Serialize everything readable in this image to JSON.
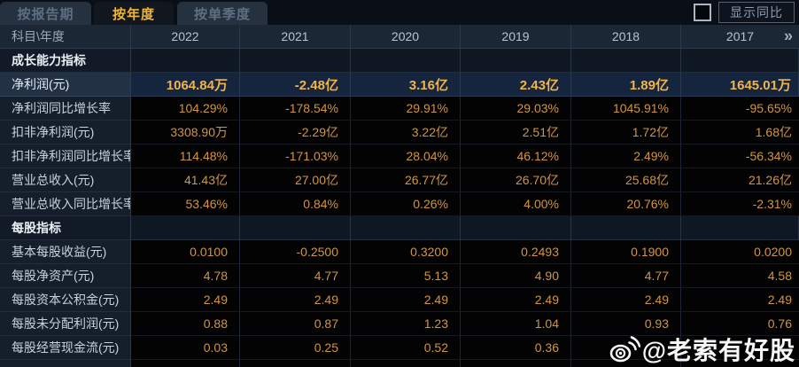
{
  "tabs": [
    {
      "label": "按报告期",
      "active": false
    },
    {
      "label": "按年度",
      "active": true
    },
    {
      "label": "按单季度",
      "active": false
    }
  ],
  "controls": {
    "show_yoy_label": "显示同比",
    "checkbox_checked": false
  },
  "table": {
    "corner_label": "科目\\年度",
    "years": [
      "2022",
      "2021",
      "2020",
      "2019",
      "2018",
      "2017"
    ],
    "more_icon": "»",
    "rows": [
      {
        "type": "section",
        "label": "成长能力指标"
      },
      {
        "type": "data",
        "highlight": true,
        "label": "净利润(元)",
        "values": [
          "1064.84万",
          "-2.48亿",
          "3.16亿",
          "2.43亿",
          "1.89亿",
          "1645.01万"
        ]
      },
      {
        "type": "data",
        "highlight": false,
        "label": "净利润同比增长率",
        "values": [
          "104.29%",
          "-178.54%",
          "29.91%",
          "29.03%",
          "1045.91%",
          "-95.65%"
        ]
      },
      {
        "type": "data",
        "highlight": false,
        "label": "扣非净利润(元)",
        "values": [
          "3308.90万",
          "-2.29亿",
          "3.22亿",
          "2.51亿",
          "1.72亿",
          "1.68亿"
        ]
      },
      {
        "type": "data",
        "highlight": false,
        "label": "扣非净利润同比增长率",
        "values": [
          "114.48%",
          "-171.03%",
          "28.04%",
          "46.12%",
          "2.49%",
          "-56.34%"
        ]
      },
      {
        "type": "data",
        "highlight": false,
        "label": "营业总收入(元)",
        "values": [
          "41.43亿",
          "27.00亿",
          "26.77亿",
          "26.70亿",
          "25.68亿",
          "21.26亿"
        ]
      },
      {
        "type": "data",
        "highlight": false,
        "label": "营业总收入同比增长率",
        "values": [
          "53.46%",
          "0.84%",
          "0.26%",
          "4.00%",
          "20.76%",
          "-2.31%"
        ]
      },
      {
        "type": "section",
        "label": "每股指标"
      },
      {
        "type": "data",
        "highlight": false,
        "label": "基本每股收益(元)",
        "values": [
          "0.0100",
          "-0.2500",
          "0.3200",
          "0.2493",
          "0.1900",
          "0.0200"
        ]
      },
      {
        "type": "data",
        "highlight": false,
        "label": "每股净资产(元)",
        "values": [
          "4.78",
          "4.77",
          "5.13",
          "4.90",
          "4.77",
          "4.58"
        ]
      },
      {
        "type": "data",
        "highlight": false,
        "label": "每股资本公积金(元)",
        "values": [
          "2.49",
          "2.49",
          "2.49",
          "2.49",
          "2.49",
          "2.49"
        ]
      },
      {
        "type": "data",
        "highlight": false,
        "label": "每股未分配利润(元)",
        "values": [
          "0.88",
          "0.87",
          "1.23",
          "1.04",
          "0.93",
          "0.76"
        ]
      },
      {
        "type": "data",
        "highlight": false,
        "label": "每股经营现金流(元)",
        "values": [
          "0.03",
          "0.25",
          "0.52",
          "0.36",
          "",
          ""
        ]
      }
    ]
  },
  "watermark": {
    "text": "@老索有好股",
    "icon": "weibo-logo"
  },
  "colors": {
    "accent_gold": "#d29540",
    "highlight_gold": "#f0b44a",
    "active_tab_text": "#eeb636",
    "highlight_row_bg": "#16253e",
    "header_bg": "#1b2734",
    "label_col_bg": "#151f2c"
  }
}
